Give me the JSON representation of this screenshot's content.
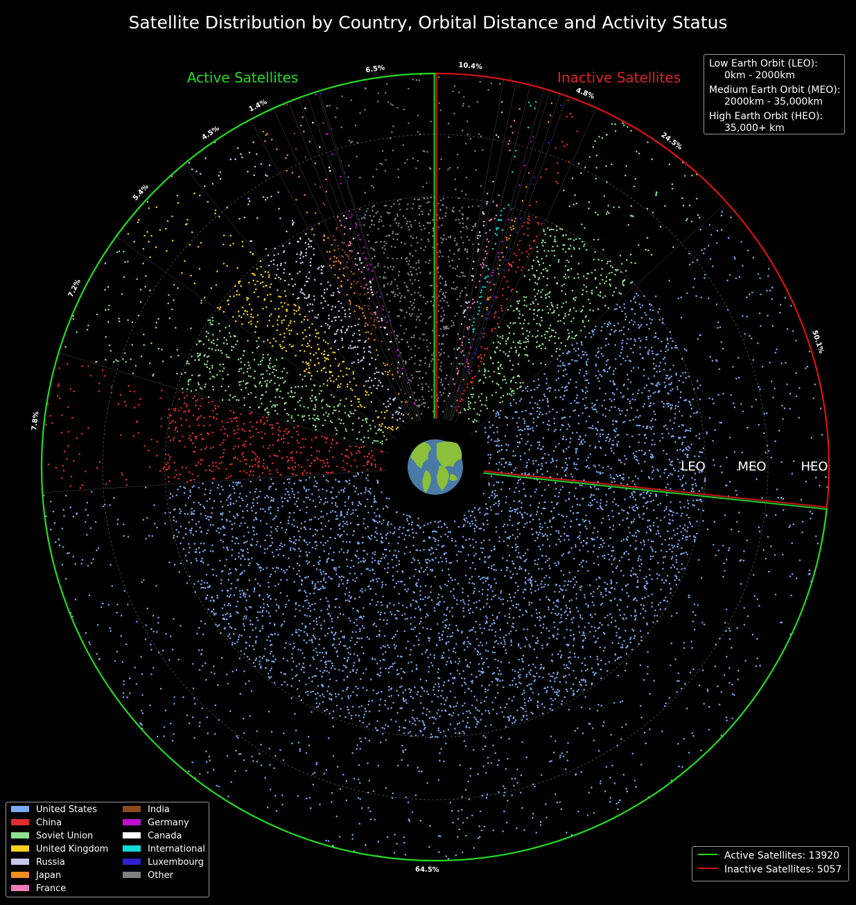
{
  "title": "Satellite Distribution by Country, Orbital Distance and Activity Status",
  "section_labels": {
    "active": "Active Satellites",
    "inactive": "Inactive Satellites"
  },
  "ring_labels": [
    "LEO",
    "MEO",
    "HEO"
  ],
  "orbit_info": {
    "leo_title": "Low Earth Orbit (LEO):",
    "leo_range": "0km - 2000km",
    "meo_title": "Medium Earth Orbit (MEO):",
    "meo_range": "2000km - 35,000km",
    "heo_title": "High Earth Orbit (HEO):",
    "heo_range": "35,000+ km"
  },
  "status_legend": [
    {
      "label": "Active Satellites: 13920",
      "color": "#22dd22"
    },
    {
      "label": "Inactive Satellites: 5057",
      "color": "#dd1111"
    }
  ],
  "colors": {
    "active_border": "#22dd22",
    "inactive_border": "#dd1111",
    "earth_ocean": "#4a7aa6",
    "earth_land": "#8cbf3a",
    "grid": "#5a5a5a"
  },
  "chart_data": {
    "type": "polar-scatter",
    "rings": [
      "LEO",
      "MEO",
      "HEO"
    ],
    "countries": [
      {
        "name": "United States",
        "color": "#7aaaf0"
      },
      {
        "name": "China",
        "color": "#e22d2d"
      },
      {
        "name": "Soviet Union",
        "color": "#90e090"
      },
      {
        "name": "United Kingdom",
        "color": "#f5d020"
      },
      {
        "name": "Russia",
        "color": "#c8c8ee"
      },
      {
        "name": "Japan",
        "color": "#f08f20"
      },
      {
        "name": "France",
        "color": "#f07ab8"
      },
      {
        "name": "India",
        "color": "#8b4a1e"
      },
      {
        "name": "Germany",
        "color": "#c010d0"
      },
      {
        "name": "Canada",
        "color": "#ffffff"
      },
      {
        "name": "International",
        "color": "#10d8d8"
      },
      {
        "name": "Luxembourg",
        "color": "#3020d0"
      },
      {
        "name": "Other",
        "color": "#808080"
      }
    ],
    "active": {
      "total": 13920,
      "sectors": [
        {
          "country": "United States",
          "pct": 64.5,
          "label": "64.5%"
        },
        {
          "country": "China",
          "pct": 7.8,
          "label": "7.8%"
        },
        {
          "country": "Soviet Union",
          "pct": 7.2,
          "label": "7.2%"
        },
        {
          "country": "United Kingdom",
          "pct": 5.4,
          "label": "5.4%"
        },
        {
          "country": "Russia",
          "pct": 4.5,
          "label": "4.5%"
        },
        {
          "country": "Japan",
          "pct": 1.4,
          "label": "1.4%"
        },
        {
          "country": "India",
          "pct": 0.9,
          "label": ""
        },
        {
          "country": "France",
          "pct": 0.6,
          "label": ""
        },
        {
          "country": "Canada",
          "pct": 0.5,
          "label": ""
        },
        {
          "country": "Germany",
          "pct": 0.6,
          "label": ""
        },
        {
          "country": "Luxembourg",
          "pct": 0.1,
          "label": ""
        },
        {
          "country": "Other",
          "pct": 6.5,
          "label": "6.5%"
        }
      ]
    },
    "inactive": {
      "total": 5057,
      "sectors": [
        {
          "country": "United States",
          "pct": 50.1,
          "label": "50.1%"
        },
        {
          "country": "Soviet Union",
          "pct": 24.5,
          "label": "24.5%"
        },
        {
          "country": "China",
          "pct": 4.8,
          "label": "4.8%"
        },
        {
          "country": "Luxembourg",
          "pct": 1.1,
          "label": ""
        },
        {
          "country": "Japan",
          "pct": 1.6,
          "label": ""
        },
        {
          "country": "Germany",
          "pct": 0.9,
          "label": ""
        },
        {
          "country": "International",
          "pct": 2.2,
          "label": ""
        },
        {
          "country": "France",
          "pct": 2.2,
          "label": ""
        },
        {
          "country": "Russia",
          "pct": 1.9,
          "label": ""
        },
        {
          "country": "Other",
          "pct": 10.4,
          "label": "10.4%"
        }
      ]
    }
  }
}
